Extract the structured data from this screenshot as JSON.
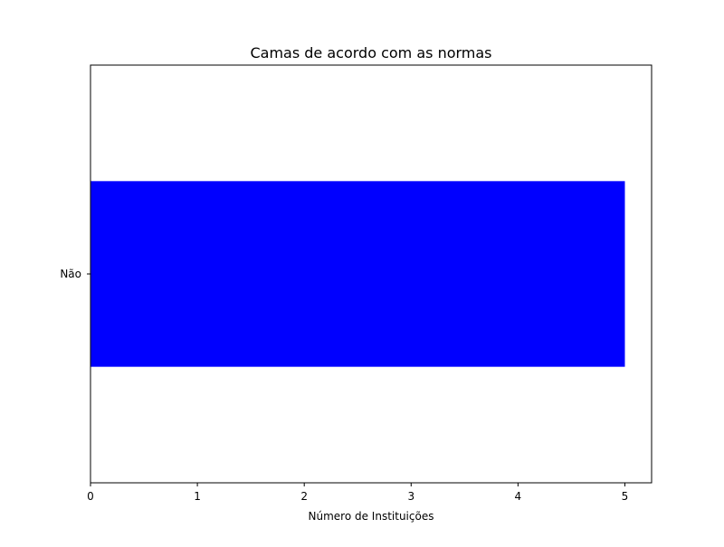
{
  "chart_data": {
    "type": "bar",
    "orientation": "horizontal",
    "title": "Camas de acordo com as normas",
    "xlabel": "Número de Instituições",
    "ylabel": "",
    "categories": [
      "Não"
    ],
    "values": [
      5
    ],
    "xlim": [
      0,
      5.25
    ],
    "xticks": [
      0,
      1,
      2,
      3,
      4,
      5
    ],
    "xtick_labels": [
      "0",
      "1",
      "2",
      "3",
      "4",
      "5"
    ],
    "bar_color": "#0000ff",
    "grid": false,
    "legend": "none"
  }
}
